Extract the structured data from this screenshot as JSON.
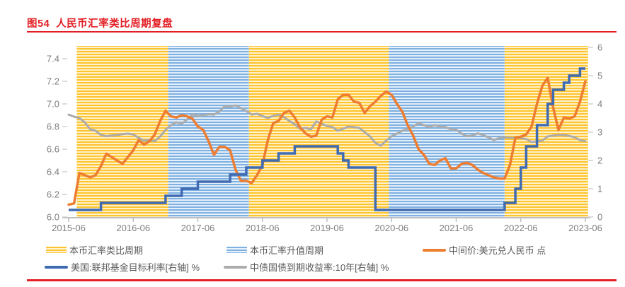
{
  "figure": {
    "title": "图54  人民币汇率类比周期复盘",
    "accent_color": "#E31E24"
  },
  "legend": {
    "items": [
      {
        "label": "本币汇率类比周期",
        "swatch": "yellow-band"
      },
      {
        "label": "本币汇率升值周期",
        "swatch": "blue-band"
      },
      {
        "label": "中间价:美元兑人民币 点",
        "swatch": "orange-line"
      },
      {
        "label": "美国:联邦基金目标利率[右轴] %",
        "swatch": "blue-line"
      },
      {
        "label": "中债国债到期收益率:10年[右轴] %",
        "swatch": "gray-line"
      }
    ]
  },
  "chart_data": {
    "type": "line",
    "title": "图54 人民币汇率类比周期复盘",
    "x_start": "2015-06",
    "x_freq": "monthly",
    "x_months_range": [
      0,
      96
    ],
    "x_ticks": [
      {
        "month": 0,
        "label": "2015-06"
      },
      {
        "month": 12,
        "label": "2016-06"
      },
      {
        "month": 24,
        "label": "2017-06"
      },
      {
        "month": 36,
        "label": "2018-06"
      },
      {
        "month": 48,
        "label": "2019-06"
      },
      {
        "month": 60,
        "label": "2020-06"
      },
      {
        "month": 72,
        "label": "2021-06"
      },
      {
        "month": 84,
        "label": "2022-06"
      },
      {
        "month": 96,
        "label": "2023-06"
      }
    ],
    "left_axis": {
      "min": 6.0,
      "max": 7.5,
      "ticks": [
        "6.0",
        "6.2",
        "6.4",
        "6.6",
        "6.8",
        "7.0",
        "7.2",
        "7.4"
      ],
      "tick_values": [
        6.0,
        6.2,
        6.4,
        6.6,
        6.8,
        7.0,
        7.2,
        7.4
      ]
    },
    "right_axis": {
      "min": 0,
      "max": 6,
      "ticks": [
        "0",
        "1",
        "2",
        "3",
        "4",
        "5",
        "6"
      ],
      "tick_values": [
        0,
        1,
        2,
        3,
        4,
        5,
        6
      ]
    },
    "grid": false,
    "legend_position": "bottom",
    "bands": [
      {
        "name": "本币汇率类比周期",
        "style": "yellow",
        "start_month": 1.5,
        "end_month": 18.5
      },
      {
        "name": "本币汇率升值周期",
        "style": "blue",
        "start_month": 18.5,
        "end_month": 33.5
      },
      {
        "name": "本币汇率类比周期",
        "style": "yellow",
        "start_month": 33.5,
        "end_month": 59.5
      },
      {
        "name": "本币汇率升值周期",
        "style": "blue",
        "start_month": 59.5,
        "end_month": 81
      },
      {
        "name": "本币汇率类比周期",
        "style": "yellow",
        "start_month": 81,
        "end_month": 96.5
      }
    ],
    "band_colors": {
      "yellow_dark": "#FFC42E",
      "yellow_light": "#FFF3D2",
      "blue_dark": "#7EB0E1",
      "blue_light": "#E9F2FB"
    },
    "series": [
      {
        "name": "中债国债到期收益率:10年[右轴] %",
        "axis": "right",
        "color": "#ACACAC",
        "width": 3,
        "step": false,
        "values": [
          3.62,
          3.55,
          3.5,
          3.35,
          3.1,
          3.05,
          2.9,
          2.86,
          2.88,
          2.9,
          2.93,
          2.95,
          2.92,
          2.8,
          2.7,
          2.73,
          2.68,
          2.85,
          3.08,
          3.25,
          3.35,
          3.3,
          3.45,
          3.63,
          3.57,
          3.6,
          3.63,
          3.62,
          3.73,
          3.92,
          3.9,
          3.95,
          3.85,
          3.75,
          3.62,
          3.65,
          3.57,
          3.5,
          3.58,
          3.62,
          3.53,
          3.4,
          3.28,
          3.12,
          3.15,
          3.1,
          3.38,
          3.3,
          3.22,
          3.18,
          3.05,
          3.12,
          3.2,
          3.18,
          3.15,
          3.0,
          2.85,
          2.62,
          2.52,
          2.7,
          2.86,
          2.95,
          3.05,
          3.12,
          3.2,
          3.32,
          3.25,
          3.18,
          3.25,
          3.2,
          3.18,
          3.1,
          3.09,
          2.95,
          2.86,
          2.88,
          2.96,
          2.9,
          2.82,
          2.72,
          2.8,
          2.82,
          2.8,
          2.8,
          2.79,
          2.76,
          2.65,
          2.68,
          2.7,
          2.85,
          2.88,
          2.9,
          2.9,
          2.87,
          2.82,
          2.72,
          2.68
        ]
      },
      {
        "name": "中间价:美元兑人民币 点",
        "axis": "left",
        "color": "#ED7D31",
        "width": 3.5,
        "step": false,
        "values": [
          6.11,
          6.12,
          6.39,
          6.37,
          6.35,
          6.37,
          6.45,
          6.56,
          6.53,
          6.5,
          6.47,
          6.53,
          6.59,
          6.68,
          6.64,
          6.67,
          6.73,
          6.85,
          6.94,
          6.89,
          6.88,
          6.9,
          6.89,
          6.87,
          6.8,
          6.77,
          6.67,
          6.55,
          6.62,
          6.62,
          6.59,
          6.42,
          6.32,
          6.32,
          6.3,
          6.37,
          6.46,
          6.68,
          6.83,
          6.85,
          6.92,
          6.94,
          6.88,
          6.79,
          6.74,
          6.71,
          6.72,
          6.86,
          6.89,
          6.88,
          7.04,
          7.08,
          7.08,
          7.02,
          7.01,
          6.92,
          6.98,
          7.02,
          7.07,
          7.11,
          7.08,
          7.0,
          6.93,
          6.81,
          6.72,
          6.6,
          6.55,
          6.47,
          6.46,
          6.5,
          6.52,
          6.43,
          6.43,
          6.47,
          6.48,
          6.46,
          6.42,
          6.39,
          6.37,
          6.35,
          6.34,
          6.34,
          6.46,
          6.7,
          6.71,
          6.73,
          6.8,
          7.0,
          7.16,
          7.23,
          6.97,
          6.77,
          6.88,
          6.87,
          6.89,
          7.02,
          7.2
        ]
      },
      {
        "name": "美国:联邦基金目标利率[右轴] %",
        "axis": "right",
        "color": "#3F6BB3",
        "width": 3.5,
        "step": true,
        "values": [
          0.25,
          0.25,
          0.25,
          0.25,
          0.25,
          0.25,
          0.5,
          0.5,
          0.5,
          0.5,
          0.5,
          0.5,
          0.5,
          0.5,
          0.5,
          0.5,
          0.5,
          0.5,
          0.75,
          0.75,
          0.75,
          1.0,
          1.0,
          1.0,
          1.25,
          1.25,
          1.25,
          1.25,
          1.25,
          1.25,
          1.5,
          1.5,
          1.5,
          1.75,
          1.75,
          1.75,
          2.0,
          2.0,
          2.0,
          2.25,
          2.25,
          2.25,
          2.5,
          2.5,
          2.5,
          2.5,
          2.5,
          2.5,
          2.5,
          2.5,
          2.25,
          2.0,
          1.75,
          1.75,
          1.75,
          1.75,
          1.75,
          0.25,
          0.25,
          0.25,
          0.25,
          0.25,
          0.25,
          0.25,
          0.25,
          0.25,
          0.25,
          0.25,
          0.25,
          0.25,
          0.25,
          0.25,
          0.25,
          0.25,
          0.25,
          0.25,
          0.25,
          0.25,
          0.25,
          0.25,
          0.25,
          0.5,
          0.5,
          1.0,
          1.75,
          2.5,
          2.5,
          3.25,
          3.25,
          4.0,
          4.5,
          4.5,
          4.75,
          5.0,
          5.0,
          5.25,
          5.25
        ]
      }
    ]
  }
}
